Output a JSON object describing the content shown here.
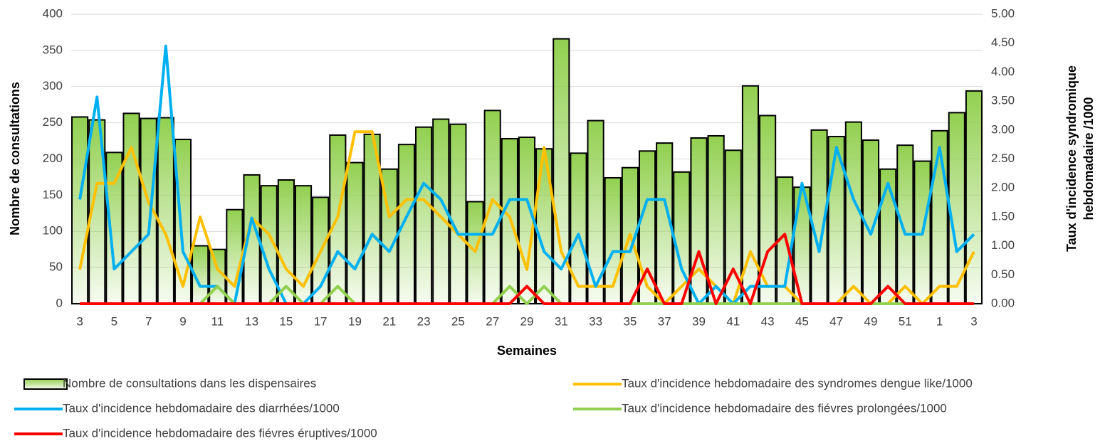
{
  "chart_data": {
    "type": "combo",
    "x_label": "Semaines",
    "y_label": "Nombre de consultations",
    "y2_label": [
      "Taux d'incidence syndromique",
      "hebdomadaire /1000"
    ],
    "categories": [
      "3",
      null,
      "5",
      null,
      "7",
      null,
      "9",
      null,
      "11",
      null,
      "13",
      null,
      "15",
      null,
      "17",
      null,
      "19",
      null,
      "21",
      null,
      "23",
      null,
      "25",
      null,
      "27",
      null,
      "29",
      null,
      "31",
      null,
      "33",
      null,
      "35",
      null,
      "37",
      null,
      "39",
      null,
      "41",
      null,
      "43",
      null,
      "45",
      null,
      "47",
      null,
      "49",
      null,
      "51",
      null,
      "1",
      null,
      "3"
    ],
    "ylim": [
      0,
      400
    ],
    "yticks": [
      0,
      50,
      100,
      150,
      200,
      250,
      300,
      350,
      400
    ],
    "y2lim": [
      0,
      5
    ],
    "y2ticks": [
      {
        "value": 0,
        "label": "0.00"
      },
      {
        "value": 0.5,
        "label": "0.50"
      },
      {
        "value": 1,
        "label": "1.00"
      },
      {
        "value": 1.5,
        "label": "1.50"
      },
      {
        "value": 2,
        "label": "2.00"
      },
      {
        "value": 2.5,
        "label": "2.50"
      },
      {
        "value": 3,
        "label": "3.00"
      },
      {
        "value": 3.5,
        "label": "3.50"
      },
      {
        "value": 4,
        "label": "4.00"
      },
      {
        "value": 4.5,
        "label": "4.50"
      },
      {
        "value": 5,
        "label": "5.00"
      }
    ],
    "grid": true,
    "series": [
      {
        "name": "Nombre de consultations dans les dispensaires",
        "type": "bar",
        "color": "#92d050",
        "values": [
          258,
          254,
          209,
          263,
          256,
          257,
          227,
          80,
          75,
          130,
          178,
          163,
          171,
          163,
          147,
          233,
          195,
          234,
          186,
          220,
          244,
          255,
          248,
          141,
          267,
          228,
          230,
          214,
          366,
          208,
          253,
          174,
          188,
          211,
          222,
          182,
          229,
          232,
          212,
          301,
          260,
          175,
          161,
          240,
          231,
          251,
          226,
          186,
          219,
          197,
          239,
          264,
          294
        ]
      },
      {
        "name": "Taux d'incidence hebdomadaire des syndromes dengue like/1000",
        "type": "line",
        "axis": "y2",
        "color": "#ffc000",
        "values": [
          0.59,
          2.08,
          2.08,
          2.7,
          1.75,
          1.2,
          0.3,
          1.5,
          0.6,
          0.3,
          1.48,
          1.2,
          0.6,
          0.3,
          0.9,
          1.5,
          2.97,
          2.97,
          1.5,
          1.8,
          1.8,
          1.5,
          1.2,
          0.9,
          1.8,
          1.5,
          0.59,
          2.7,
          0.9,
          0.3,
          0.3,
          0.3,
          1.2,
          0.3,
          0,
          0.3,
          0.6,
          0.3,
          0,
          0.9,
          0.3,
          0.3,
          0,
          0,
          0,
          0.3,
          0,
          0,
          0.3,
          0,
          0.3,
          0.3,
          0.9
        ]
      },
      {
        "name": "Taux d'incidence hebdomadaire des diarrhées/1000",
        "type": "line",
        "axis": "y2",
        "color": "#00b0f0",
        "values": [
          1.8,
          3.57,
          0.6,
          0.9,
          1.2,
          4.45,
          0.9,
          0.3,
          0.3,
          0,
          1.48,
          0.6,
          0,
          0,
          0.3,
          0.9,
          0.6,
          1.2,
          0.9,
          1.5,
          2.08,
          1.8,
          1.2,
          1.2,
          1.2,
          1.8,
          1.8,
          0.9,
          0.6,
          1.2,
          0.3,
          0.9,
          0.9,
          1.8,
          1.8,
          0.6,
          0,
          0.3,
          0,
          0.3,
          0.3,
          0.3,
          2.08,
          0.9,
          2.7,
          1.8,
          1.2,
          2.08,
          1.2,
          1.2,
          2.7,
          0.9,
          1.2
        ]
      },
      {
        "name": "Taux d'incidence hebdomadaire des fiévres prolongées/1000",
        "type": "line",
        "axis": "y2",
        "color": "#92d050",
        "values": [
          0,
          0,
          0,
          0,
          0,
          0,
          0,
          0,
          0.3,
          0,
          0,
          0,
          0.3,
          0,
          0,
          0.3,
          0,
          0,
          0,
          0,
          0,
          0,
          0,
          0,
          0,
          0.3,
          0,
          0.3,
          0,
          0,
          0,
          0,
          0,
          0,
          0,
          0,
          0,
          0,
          0,
          0,
          0,
          0,
          0,
          0,
          0,
          0,
          0,
          0,
          0,
          0,
          0,
          0,
          0
        ]
      },
      {
        "name": "Taux d'incidence hebdomadaire des fiévres éruptives/1000",
        "type": "line",
        "axis": "y2",
        "color": "#ff0000",
        "values": [
          0,
          0,
          0,
          0,
          0,
          0,
          0,
          0,
          0,
          0,
          0,
          0,
          0,
          0,
          0,
          0,
          0,
          0,
          0,
          0,
          0,
          0,
          0,
          0,
          0,
          0,
          0.3,
          0,
          0,
          0,
          0,
          0,
          0,
          0.6,
          0,
          0,
          0.9,
          0,
          0.6,
          0,
          0.9,
          1.2,
          0,
          0,
          0,
          0,
          0,
          0.3,
          0,
          0,
          0,
          0,
          0
        ]
      }
    ]
  }
}
